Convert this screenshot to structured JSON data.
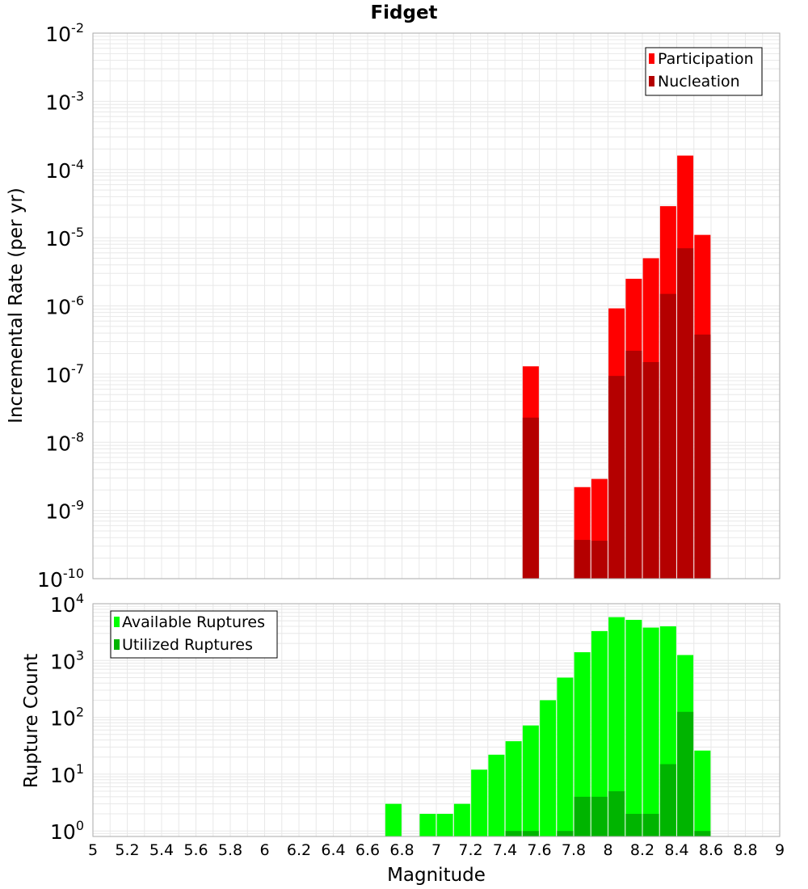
{
  "title": "Fidget",
  "xlabel": "Magnitude",
  "colors": {
    "participation": "#ff0000",
    "nucleation": "#b40000",
    "available": "#00ff00",
    "utilized": "#00b400",
    "grid": "#e8e8e8",
    "frame": "#aaaaaa"
  },
  "chart_data": [
    {
      "type": "bar",
      "ylabel": "Incremental Rate (per yr)",
      "yscale": "log",
      "ylim": [
        1e-10,
        0.01
      ],
      "xlim": [
        5,
        9
      ],
      "grid": true,
      "legend_position": "top-right",
      "x": [
        7.55,
        7.85,
        7.95,
        8.05,
        8.15,
        8.25,
        8.35,
        8.45,
        8.55
      ],
      "series": [
        {
          "name": "Participation",
          "values": [
            1.3e-07,
            2.2e-09,
            2.9e-09,
            9.2e-07,
            2.5e-06,
            5e-06,
            2.9e-05,
            0.00016,
            1.1e-05
          ]
        },
        {
          "name": "Nucleation",
          "values": [
            2.3e-08,
            3.7e-10,
            3.6e-10,
            9.4e-08,
            2.2e-07,
            1.5e-07,
            1.5e-06,
            7e-06,
            3.8e-07
          ]
        }
      ]
    },
    {
      "type": "bar",
      "ylabel": "Rupture Count",
      "yscale": "log",
      "ylim": [
        0.8,
        10000
      ],
      "xlim": [
        5,
        9
      ],
      "grid": true,
      "legend_position": "top-left",
      "x": [
        6.75,
        6.95,
        7.05,
        7.15,
        7.25,
        7.35,
        7.45,
        7.55,
        7.65,
        7.75,
        7.85,
        7.95,
        8.05,
        8.15,
        8.25,
        8.35,
        8.45,
        8.55
      ],
      "series": [
        {
          "name": "Available Ruptures",
          "values": [
            3,
            2,
            2,
            3,
            12,
            22,
            38,
            72,
            200,
            500,
            1400,
            3300,
            5800,
            5200,
            3800,
            4000,
            1250,
            26
          ]
        },
        {
          "name": "Utilized Ruptures",
          "values": [
            0,
            0,
            0,
            0,
            0,
            0,
            1,
            1,
            0,
            1,
            4,
            4,
            5,
            2,
            2,
            15,
            125,
            1
          ]
        }
      ]
    }
  ],
  "x_ticks": [
    "5",
    "5.2",
    "5.4",
    "5.6",
    "5.8",
    "6",
    "6.2",
    "6.4",
    "6.6",
    "6.8",
    "7",
    "7.2",
    "7.4",
    "7.6",
    "7.8",
    "8",
    "8.2",
    "8.4",
    "8.6",
    "8.8",
    "9"
  ],
  "y_ticks_top": [
    {
      "base": "10",
      "exp": "-2"
    },
    {
      "base": "10",
      "exp": "-3"
    },
    {
      "base": "10",
      "exp": "-4"
    },
    {
      "base": "10",
      "exp": "-5"
    },
    {
      "base": "10",
      "exp": "-6"
    },
    {
      "base": "10",
      "exp": "-7"
    },
    {
      "base": "10",
      "exp": "-8"
    },
    {
      "base": "10",
      "exp": "-9"
    },
    {
      "base": "10",
      "exp": "-10"
    }
  ],
  "y_ticks_bottom": [
    {
      "base": "10",
      "exp": "4"
    },
    {
      "base": "10",
      "exp": "3"
    },
    {
      "base": "10",
      "exp": "2"
    },
    {
      "base": "10",
      "exp": "1"
    },
    {
      "base": "10",
      "exp": "0"
    }
  ]
}
